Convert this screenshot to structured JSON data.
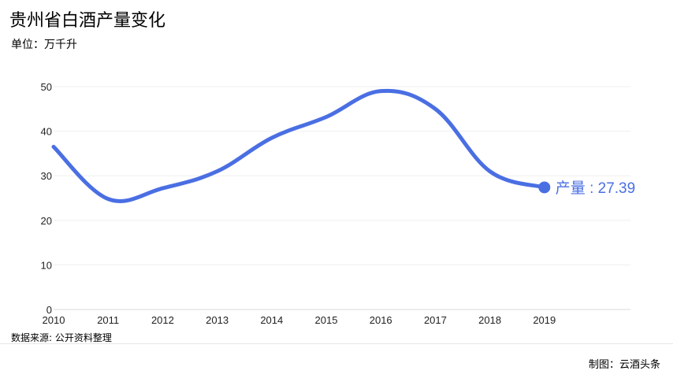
{
  "header": {
    "title": "贵州省白酒产量变化",
    "unit": "单位：万千升"
  },
  "footer": {
    "source": "数据来源: 公开资料整理",
    "credit": "制图：云酒头条"
  },
  "chart_data": {
    "type": "line",
    "categories": [
      "2010",
      "2011",
      "2012",
      "2013",
      "2014",
      "2015",
      "2016",
      "2017",
      "2018",
      "2019"
    ],
    "series": [
      {
        "values": [
          36.5,
          24.8,
          27.2,
          31.0,
          38.5,
          43.2,
          49.0,
          45.0,
          31.0,
          27.39
        ]
      }
    ],
    "ylim": [
      0,
      50
    ],
    "yticks": [
      0,
      10,
      20,
      30,
      40,
      50
    ],
    "last_point_label": "产量 : 27.39",
    "grid": true,
    "line_color": "#4a6fe3"
  }
}
